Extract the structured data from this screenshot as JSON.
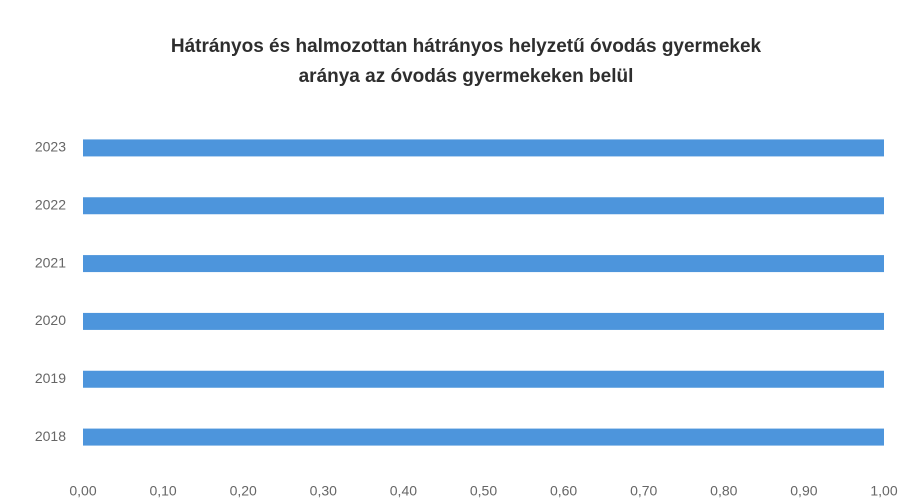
{
  "chart_data": {
    "type": "hbar",
    "title": [
      "Hátrányos és halmozottan hátrányos helyzetű óvodás gyermekek",
      "aránya az óvodás gyermekeken belül"
    ],
    "categories": [
      "2018",
      "2019",
      "2020",
      "2021",
      "2022",
      "2023"
    ],
    "values": [
      1,
      1,
      1,
      1,
      1,
      1
    ],
    "color": "#4d95dc",
    "xlim": [
      0,
      1
    ],
    "xticks": [
      {
        "value": 0,
        "label": "0,00"
      },
      {
        "value": 0.1,
        "label": "0,10"
      },
      {
        "value": 0.2,
        "label": "0,20"
      },
      {
        "value": 0.3,
        "label": "0,30"
      },
      {
        "value": 0.4,
        "label": "0,40"
      },
      {
        "value": 0.5,
        "label": "0,50"
      },
      {
        "value": 0.6,
        "label": "0,60"
      },
      {
        "value": 0.7,
        "label": "0,70"
      },
      {
        "value": 0.8,
        "label": "0,80"
      },
      {
        "value": 0.9,
        "label": "0,90"
      },
      {
        "value": 1,
        "label": "1,00"
      }
    ],
    "grid": false
  }
}
